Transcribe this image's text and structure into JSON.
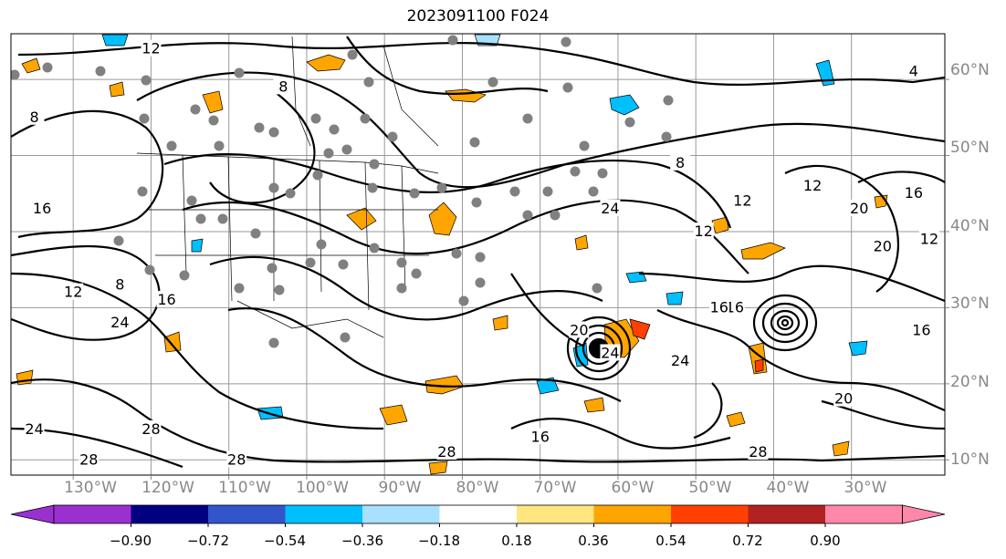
{
  "title": "2023091100 F024",
  "map": {
    "lon_range": [
      -138,
      -18
    ],
    "lat_range": [
      8,
      66
    ],
    "lat_labels": [
      "60°N",
      "50°N",
      "40°N",
      "30°N",
      "20°N",
      "10°N"
    ],
    "lon_labels": [
      "130°W",
      "120°W",
      "110°W",
      "100°W",
      "90°W",
      "80°W",
      "70°W",
      "60°W",
      "50°W",
      "40°W",
      "30°W"
    ],
    "contour_labels": [
      {
        "text": "12",
        "lon": -120,
        "lat": 64
      },
      {
        "text": "8",
        "lon": -103,
        "lat": 59
      },
      {
        "text": "4",
        "lon": -22,
        "lat": 61
      },
      {
        "text": "8",
        "lon": -135,
        "lat": 55
      },
      {
        "text": "8",
        "lon": -52,
        "lat": 49
      },
      {
        "text": "16",
        "lon": -134,
        "lat": 43
      },
      {
        "text": "16",
        "lon": -22,
        "lat": 45
      },
      {
        "text": "12",
        "lon": -44,
        "lat": 44
      },
      {
        "text": "12",
        "lon": -49,
        "lat": 40
      },
      {
        "text": "12",
        "lon": -20,
        "lat": 39
      },
      {
        "text": "24",
        "lon": -61,
        "lat": 43
      },
      {
        "text": "12",
        "lon": -35,
        "lat": 46
      },
      {
        "text": "20",
        "lon": -29,
        "lat": 43
      },
      {
        "text": "20",
        "lon": -26,
        "lat": 38
      },
      {
        "text": "12",
        "lon": -130,
        "lat": 32
      },
      {
        "text": "8",
        "lon": -124,
        "lat": 33
      },
      {
        "text": "16",
        "lon": -118,
        "lat": 31
      },
      {
        "text": "24",
        "lon": -124,
        "lat": 28
      },
      {
        "text": "16",
        "lon": -45,
        "lat": 30
      },
      {
        "text": "16",
        "lon": -47,
        "lat": 30
      },
      {
        "text": "24",
        "lon": -52,
        "lat": 23
      },
      {
        "text": "24",
        "lon": -61,
        "lat": 24
      },
      {
        "text": "16",
        "lon": -21,
        "lat": 27
      },
      {
        "text": "20",
        "lon": -31,
        "lat": 18
      },
      {
        "text": "24",
        "lon": -135,
        "lat": 14
      },
      {
        "text": "28",
        "lon": -128,
        "lat": 10
      },
      {
        "text": "28",
        "lon": -109,
        "lat": 10
      },
      {
        "text": "28",
        "lon": -82,
        "lat": 11
      },
      {
        "text": "16",
        "lon": -70,
        "lat": 13
      },
      {
        "text": "28",
        "lon": -42,
        "lat": 11
      },
      {
        "text": "28",
        "lon": -120,
        "lat": 14
      },
      {
        "text": "20",
        "lon": -65,
        "lat": 27
      }
    ]
  },
  "colorbar": {
    "labels": [
      "−0.90",
      "−0.72",
      "−0.54",
      "−0.36",
      "−0.18",
      "0.18",
      "0.36",
      "0.54",
      "0.72",
      "0.90"
    ],
    "colors": [
      "#9b30d0",
      "#000080",
      "#3355cc",
      "#00bfff",
      "#a8e0ff",
      "#ffffff",
      "#ffe680",
      "#ffa500",
      "#ff4000",
      "#b22222",
      "#ff88aa"
    ]
  }
}
